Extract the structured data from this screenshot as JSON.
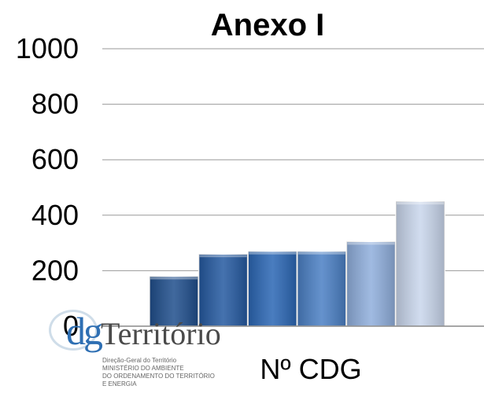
{
  "chart_data": {
    "type": "bar",
    "title": "Anexo I",
    "xlabel": "Nº CDG",
    "ylabel": "",
    "categories": [
      "",
      "",
      "",
      "",
      "",
      ""
    ],
    "values": [
      180,
      260,
      270,
      270,
      305,
      450
    ],
    "ylim": [
      0,
      1000
    ],
    "yticks": [
      0,
      200,
      400,
      600,
      800,
      1000
    ],
    "grid": true,
    "legend": "none",
    "bar_colors": [
      "#1f4e8c",
      "#2459a0",
      "#2a66b4",
      "#4a7fc4",
      "#8faedc",
      "#c9d6ec"
    ]
  },
  "logo": {
    "dg": "dg",
    "word": "Território",
    "sub_lines": [
      "Direção-Geral do Território",
      "MINISTÉRIO DO AMBIENTE",
      "DO ORDENAMENTO DO TERRITÓRIO",
      "E ENERGIA"
    ]
  }
}
